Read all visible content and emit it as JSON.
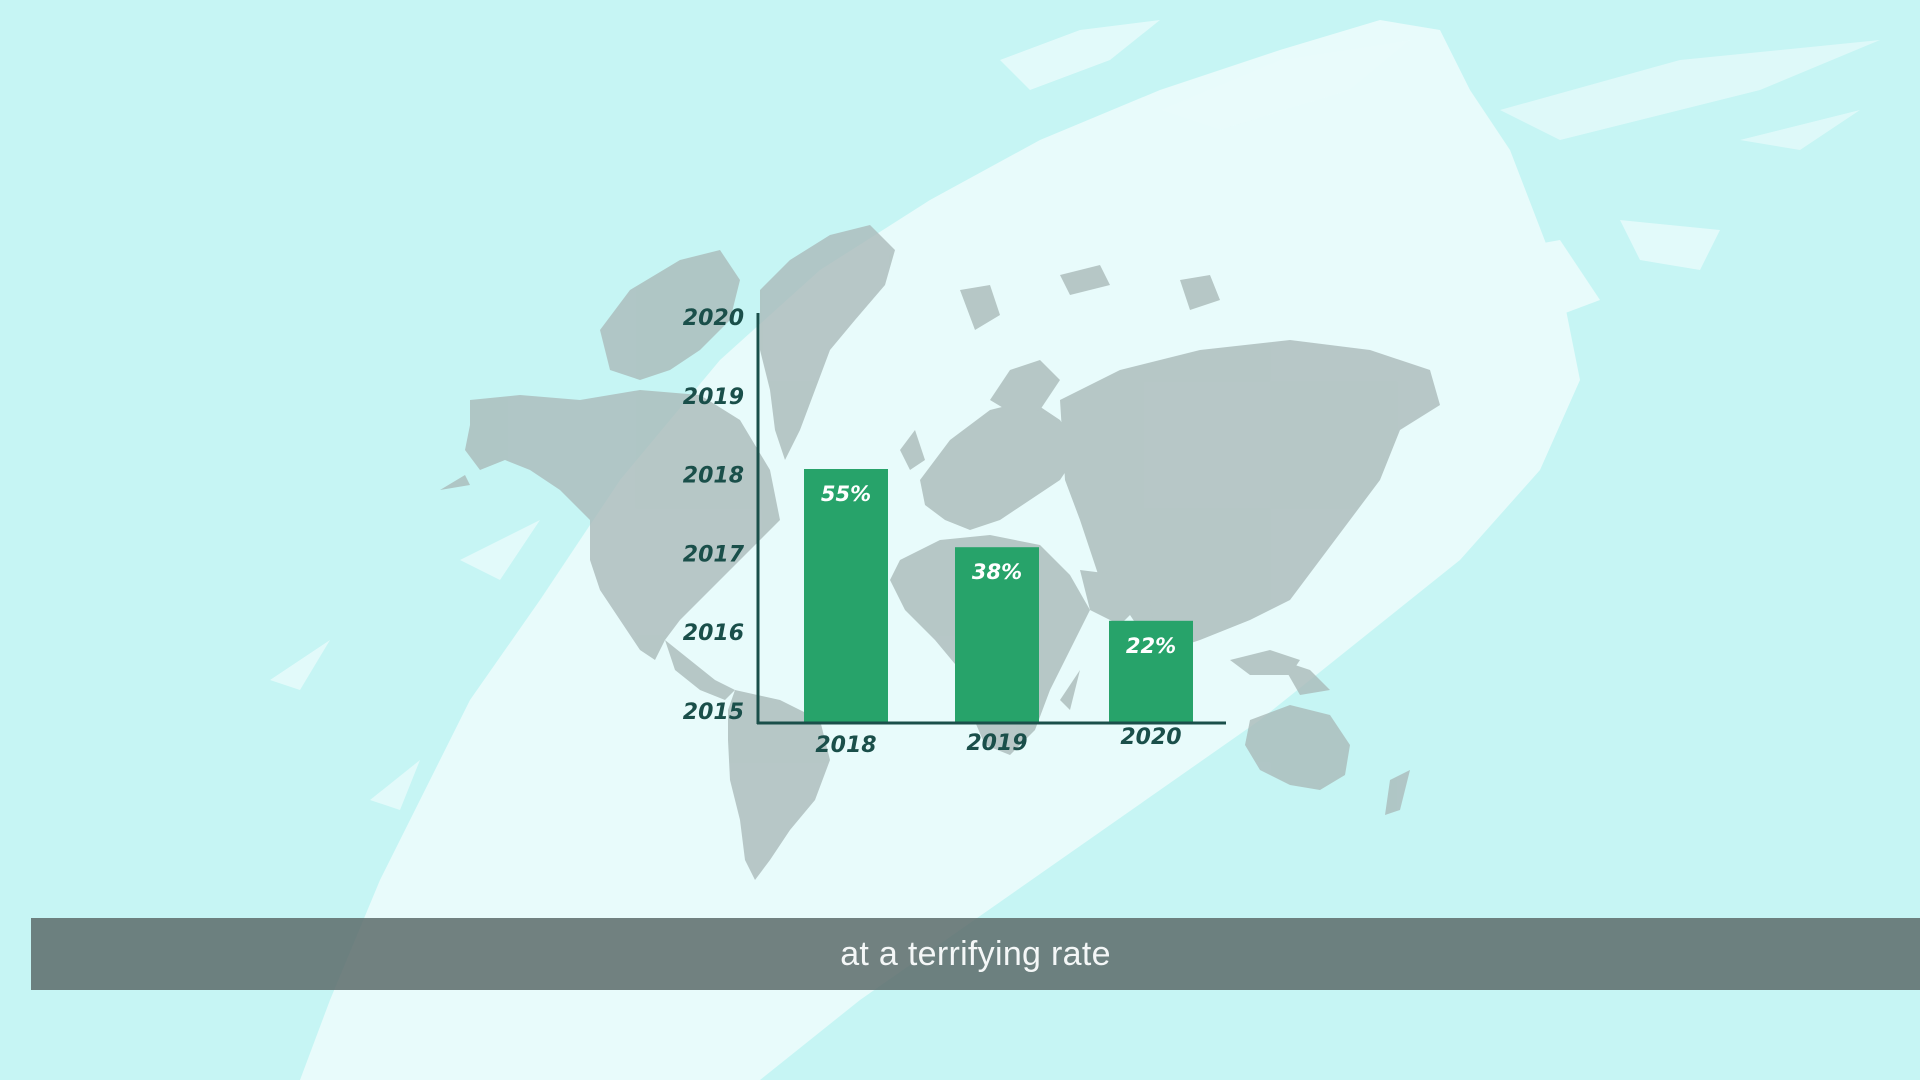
{
  "colors": {
    "background": "#c6f5f4",
    "brush": "#e8fbfb",
    "map": "#a9b9b8",
    "bar": "#27a36a",
    "axis": "#1a4f4a",
    "caption_bg": "#60706e",
    "caption_text": "#f4f7f7"
  },
  "caption": {
    "text": "at a terrifying rate"
  },
  "chart_data": {
    "type": "bar",
    "categories": [
      "2018",
      "2019",
      "2020"
    ],
    "values": [
      55,
      38,
      22
    ],
    "value_labels": [
      "55%",
      "38%",
      "22%"
    ],
    "y_tick_labels": [
      "2015",
      "2016",
      "2017",
      "2018",
      "2019",
      "2020"
    ],
    "ylim": [
      0,
      100
    ],
    "grid": false,
    "legend": "none"
  }
}
